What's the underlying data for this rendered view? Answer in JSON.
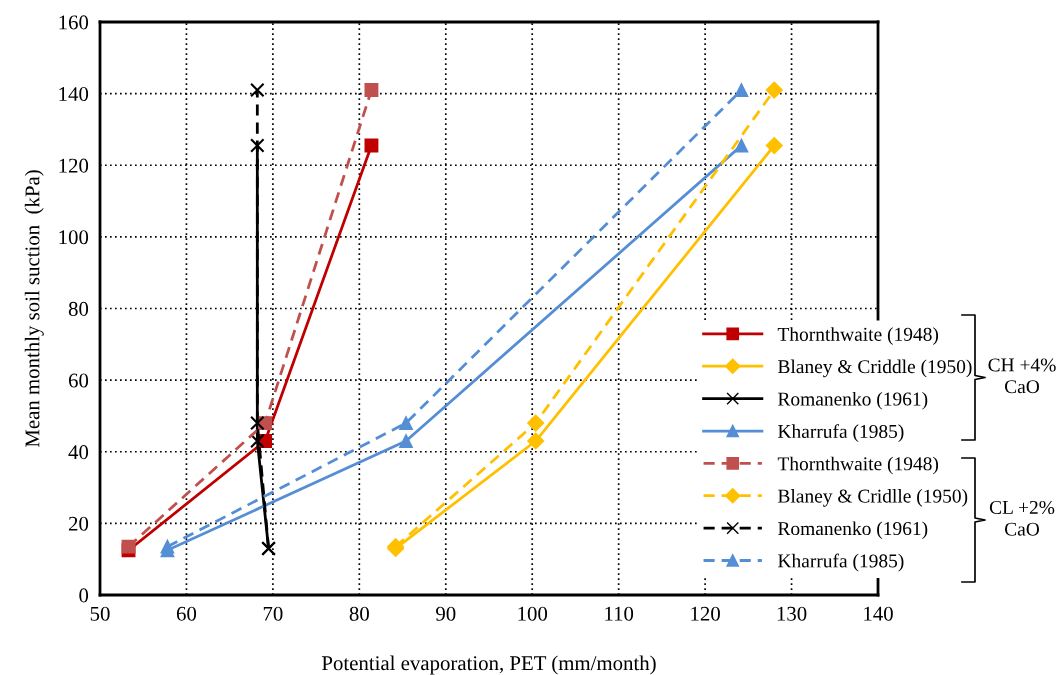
{
  "chart_data": {
    "type": "line",
    "xlabel": "Potential evaporation, PET (mm/month)",
    "ylabel": "Mean monthly soil suction  (kPa)",
    "xlim": [
      50,
      140
    ],
    "xticks": [
      50,
      60,
      70,
      80,
      90,
      100,
      110,
      120,
      130,
      140
    ],
    "ylim": [
      0,
      160
    ],
    "yticks": [
      0,
      20,
      40,
      60,
      80,
      100,
      120,
      140,
      160
    ],
    "grid": true,
    "legend": "bottom right",
    "series": [
      {
        "name": "Thornthwaite (1948)",
        "color": "#c00000",
        "marker": "square",
        "line_style": "solid",
        "x": [
          53.3,
          69.1,
          81.4
        ],
        "values": [
          12.5,
          43,
          125.5
        ]
      },
      {
        "name": "Blaney & Criddle (1950)",
        "color": "#ffc000",
        "marker": "diamond",
        "line_style": "solid",
        "x": [
          84.2,
          100.4,
          128
        ],
        "values": [
          13,
          43,
          125.5
        ]
      },
      {
        "name": "Romanenko (1961)",
        "color": "#000000",
        "marker": "cross",
        "line_style": "solid",
        "x": [
          69.5,
          68.2,
          68.2
        ],
        "values": [
          13,
          43,
          125.5
        ]
      },
      {
        "name": "Kharrufa (1985)",
        "color": "#558ed5",
        "marker": "triangle",
        "line_style": "solid",
        "x": [
          57.8,
          85.4,
          124.2
        ],
        "values": [
          12.5,
          43,
          125.5
        ]
      },
      {
        "name": "Thornthwaite (1948)",
        "color": "#c0504d",
        "marker": "square",
        "line_style": "dashed",
        "x": [
          53.3,
          69.1,
          81.4
        ],
        "values": [
          13.5,
          48,
          141
        ]
      },
      {
        "name": "Blaney & Cridlle (1950)",
        "color": "#ffc000",
        "marker": "diamond",
        "line_style": "dashed",
        "x": [
          84.2,
          100.4,
          128
        ],
        "values": [
          13.5,
          48,
          141
        ]
      },
      {
        "name": "Romanenko (1961)",
        "color": "#000000",
        "marker": "cross",
        "line_style": "dashed",
        "x": [
          69.5,
          68.2,
          68.2
        ],
        "values": [
          13,
          48,
          141
        ]
      },
      {
        "name": "Kharrufa (1985)",
        "color": "#558ed5",
        "marker": "triangle",
        "line_style": "dashed",
        "x": [
          57.8,
          85.4,
          124.2
        ],
        "values": [
          13.5,
          48,
          141
        ]
      }
    ],
    "annotations": [
      "CH +4%\nCaO",
      "CL +2%\nCaO"
    ]
  }
}
